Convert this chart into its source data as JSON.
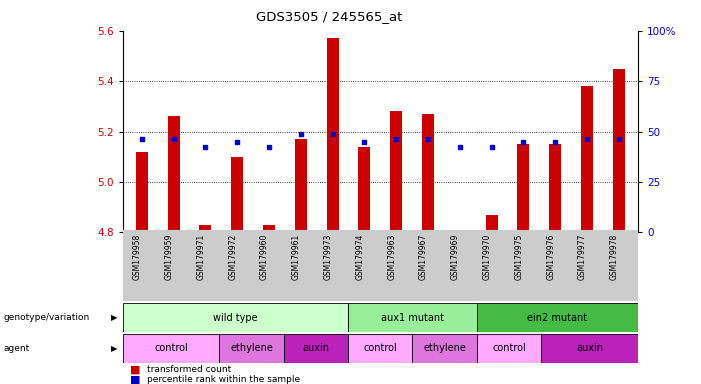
{
  "title": "GDS3505 / 245565_at",
  "samples": [
    "GSM179958",
    "GSM179959",
    "GSM179971",
    "GSM179972",
    "GSM179960",
    "GSM179961",
    "GSM179973",
    "GSM179974",
    "GSM179963",
    "GSM179967",
    "GSM179969",
    "GSM179970",
    "GSM179975",
    "GSM179976",
    "GSM179977",
    "GSM179978"
  ],
  "bar_values": [
    5.12,
    5.26,
    4.83,
    5.1,
    4.83,
    5.17,
    5.57,
    5.14,
    5.28,
    5.27,
    4.8,
    4.87,
    5.15,
    5.15,
    5.38,
    5.45
  ],
  "dot_values": [
    5.17,
    5.17,
    5.14,
    5.16,
    5.14,
    5.19,
    5.19,
    5.16,
    5.17,
    5.17,
    5.14,
    5.14,
    5.16,
    5.16,
    5.17,
    5.17
  ],
  "ymin": 4.8,
  "ymax": 5.6,
  "yticks": [
    4.8,
    5.0,
    5.2,
    5.4,
    5.6
  ],
  "right_yticks": [
    0,
    25,
    50,
    75,
    100
  ],
  "right_ytick_labels": [
    "0",
    "25",
    "50",
    "75",
    "100%"
  ],
  "bar_color": "#cc0000",
  "dot_color": "#0000cc",
  "bar_bottom": 4.8,
  "genotype_groups": [
    {
      "label": "wild type",
      "start": 0,
      "end": 7,
      "color": "#ccffcc"
    },
    {
      "label": "aux1 mutant",
      "start": 7,
      "end": 11,
      "color": "#99ee99"
    },
    {
      "label": "ein2 mutant",
      "start": 11,
      "end": 16,
      "color": "#44bb44"
    }
  ],
  "agent_groups": [
    {
      "label": "control",
      "start": 0,
      "end": 3,
      "color": "#ffaaff"
    },
    {
      "label": "ethylene",
      "start": 3,
      "end": 5,
      "color": "#ee88ee"
    },
    {
      "label": "auxin",
      "start": 5,
      "end": 7,
      "color": "#cc33cc"
    },
    {
      "label": "control",
      "start": 7,
      "end": 9,
      "color": "#ffaaff"
    },
    {
      "label": "ethylene",
      "start": 9,
      "end": 11,
      "color": "#ee88ee"
    },
    {
      "label": "control",
      "start": 11,
      "end": 13,
      "color": "#ffaaff"
    },
    {
      "label": "auxin",
      "start": 13,
      "end": 16,
      "color": "#cc33cc"
    }
  ],
  "legend_items": [
    {
      "label": "transformed count",
      "color": "#cc0000"
    },
    {
      "label": "percentile rank within the sample",
      "color": "#0000cc"
    }
  ],
  "row_labels": [
    "genotype/variation",
    "agent"
  ],
  "bg_color": "#ffffff",
  "tick_label_color_left": "#cc0000",
  "tick_label_color_right": "#0000cc",
  "sample_bg_color": "#cccccc"
}
